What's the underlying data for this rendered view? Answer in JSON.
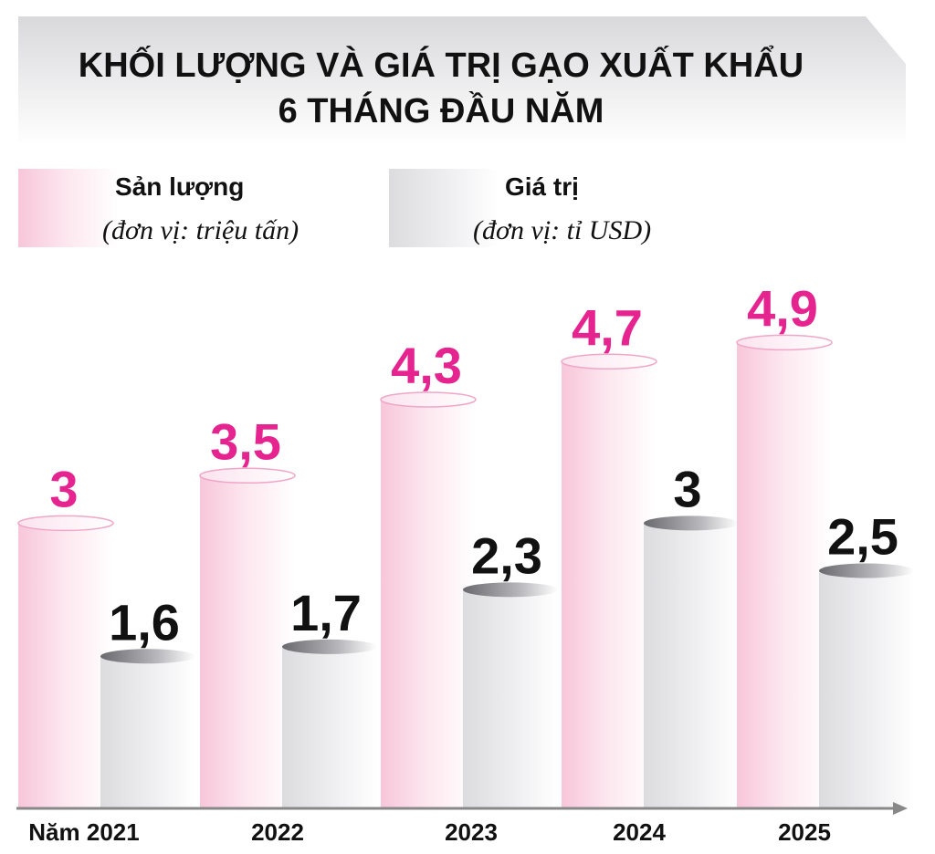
{
  "title_line1": "KHỐI LƯỢNG VÀ GIÁ TRỊ GẠO XUẤT KHẨU",
  "title_line2": "6 THÁNG ĐẦU NĂM",
  "colors": {
    "volume_text": "#e6248f",
    "value_text": "#111111",
    "volume_bar": "#f9d6e4",
    "value_bar": "#e9e9eb",
    "axis": "#888888"
  },
  "legend": {
    "volume": {
      "label": "Sản lượng",
      "unit": "(đơn vị: triệu tấn)"
    },
    "value": {
      "label": "Giá trị",
      "unit": "(đơn vị: tỉ USD)"
    }
  },
  "chart_data": {
    "type": "bar",
    "categories": [
      "Năm 2021",
      "2022",
      "2023",
      "2024",
      "2025"
    ],
    "series": [
      {
        "name": "Sản lượng",
        "values": [
          3,
          3.5,
          4.3,
          4.7,
          4.9
        ],
        "labels": [
          "3",
          "3,5",
          "4,3",
          "4,7",
          "4,9"
        ]
      },
      {
        "name": "Giá trị",
        "values": [
          1.6,
          1.7,
          2.3,
          3,
          2.5
        ],
        "labels": [
          "1,6",
          "1,7",
          "2,3",
          "3",
          "2,5"
        ]
      }
    ],
    "title": "KHỐI LƯỢNG VÀ GIÁ TRỊ GẠO XUẤT KHẨU 6 THÁNG ĐẦU NĂM",
    "grid": false,
    "legend_position": "top"
  }
}
